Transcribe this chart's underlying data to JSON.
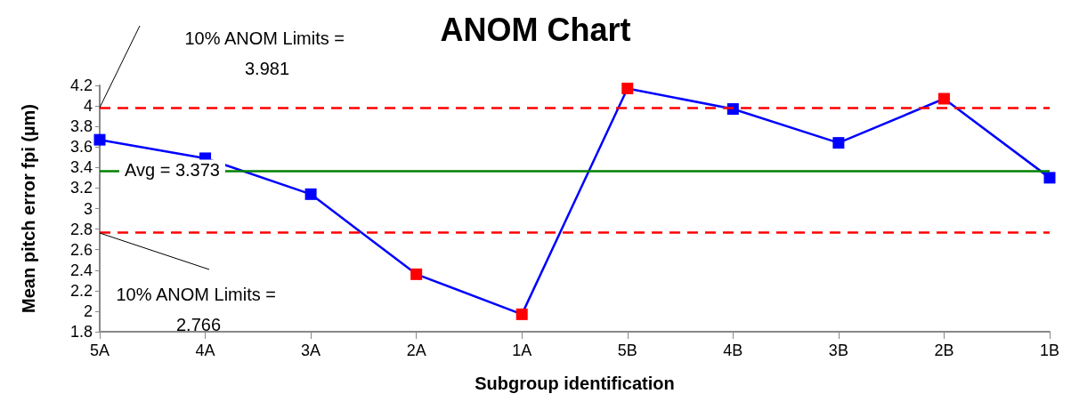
{
  "chart_data": {
    "type": "line",
    "title": "ANOM Chart",
    "xlabel": "Subgroup identification",
    "ylabel": "Mean pitch error fpi (µm)",
    "categories": [
      "5A",
      "4A",
      "3A",
      "2A",
      "1A",
      "5B",
      "4B",
      "3B",
      "2B",
      "1B"
    ],
    "series": [
      {
        "color": "#0000ff",
        "values": [
          3.67,
          3.49,
          3.14,
          2.36,
          1.97,
          4.17,
          3.97,
          3.64,
          4.07,
          3.3
        ],
        "colors": [
          "#0000ff",
          "#0000ff",
          "#0000ff",
          "#ff0000",
          "#ff0000",
          "#ff0000",
          "#0000ff",
          "#0000ff",
          "#ff0000",
          "#0000ff"
        ]
      }
    ],
    "ylim": [
      1.8,
      4.2
    ],
    "yticks": [
      1.8,
      2,
      2.2,
      2.4,
      2.6,
      2.8,
      3,
      3.2,
      3.4,
      3.6,
      3.8,
      4,
      4.2
    ],
    "ref_lines": [
      {
        "axis": "y",
        "value": 3.981,
        "label": "10% ANOM Limits = 3.981",
        "color": "#ff0000",
        "line_style": "dashed"
      },
      {
        "axis": "y",
        "value": 3.373,
        "label": "Avg = 3.373",
        "color": "#008000",
        "line_style": "solid"
      },
      {
        "axis": "y",
        "value": 2.766,
        "label": "10% ANOM Limits = 2.766",
        "color": "#ff0000",
        "line_style": "dashed"
      }
    ],
    "marker": "square",
    "line_style": "solid"
  }
}
